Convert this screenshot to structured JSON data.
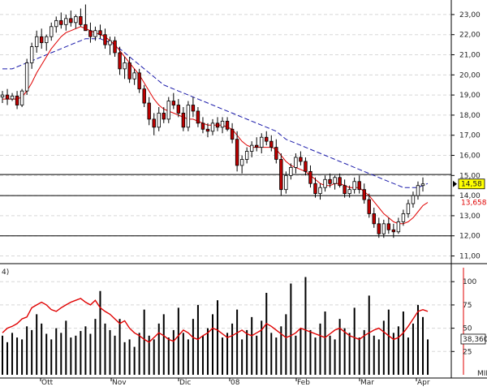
{
  "chart_data": [
    {
      "type": "candlestick",
      "title": "",
      "x_labels": [
        "Ott",
        "Nov",
        "Dic",
        "08",
        "Feb",
        "Mar",
        "Apr"
      ],
      "y_ticks": [
        "23,00",
        "22,00",
        "21,00",
        "20,00",
        "19,00",
        "18,00",
        "17,00",
        "16,00",
        "15,00",
        "14,00",
        "13,00",
        "12,00",
        "11,00"
      ],
      "ylim": [
        10.9,
        23.4
      ],
      "last_price_label": "14,58",
      "ma_label": "13,658",
      "horizontal_lines": [
        15.05,
        14.0,
        12.0
      ],
      "colors": {
        "up": "#ffffff",
        "down": "#c00000",
        "wick": "#000000",
        "ma_fast": "#e00000",
        "ma_slow": "#1a1aaa",
        "last_price_bg": "#ffff00"
      },
      "series_candles": [
        {
          "o": 18.9,
          "h": 19.2,
          "l": 18.6,
          "c": 19.0
        },
        {
          "o": 19.0,
          "h": 19.3,
          "l": 18.5,
          "c": 18.8
        },
        {
          "o": 18.8,
          "h": 19.1,
          "l": 18.7,
          "c": 18.95
        },
        {
          "o": 18.95,
          "h": 19.2,
          "l": 18.3,
          "c": 18.5
        },
        {
          "o": 18.5,
          "h": 19.3,
          "l": 18.4,
          "c": 19.2
        },
        {
          "o": 19.2,
          "h": 20.8,
          "l": 19.0,
          "c": 20.6
        },
        {
          "o": 20.6,
          "h": 21.6,
          "l": 20.3,
          "c": 21.4
        },
        {
          "o": 21.4,
          "h": 22.2,
          "l": 21.1,
          "c": 21.9
        },
        {
          "o": 21.9,
          "h": 22.3,
          "l": 21.3,
          "c": 21.6
        },
        {
          "o": 21.6,
          "h": 22.0,
          "l": 21.2,
          "c": 21.9
        },
        {
          "o": 21.9,
          "h": 22.6,
          "l": 21.7,
          "c": 22.4
        },
        {
          "o": 22.4,
          "h": 22.9,
          "l": 22.1,
          "c": 22.7
        },
        {
          "o": 22.7,
          "h": 23.1,
          "l": 22.3,
          "c": 22.5
        },
        {
          "o": 22.5,
          "h": 23.0,
          "l": 22.2,
          "c": 22.8
        },
        {
          "o": 22.8,
          "h": 23.2,
          "l": 22.4,
          "c": 22.6
        },
        {
          "o": 22.6,
          "h": 23.0,
          "l": 22.3,
          "c": 22.9
        },
        {
          "o": 22.9,
          "h": 23.3,
          "l": 22.4,
          "c": 22.5
        },
        {
          "o": 22.5,
          "h": 23.5,
          "l": 22.2,
          "c": 22.2
        },
        {
          "o": 22.2,
          "h": 22.6,
          "l": 21.6,
          "c": 21.9
        },
        {
          "o": 21.9,
          "h": 22.4,
          "l": 21.7,
          "c": 22.2
        },
        {
          "o": 22.2,
          "h": 22.5,
          "l": 21.8,
          "c": 22.0
        },
        {
          "o": 22.0,
          "h": 22.3,
          "l": 21.3,
          "c": 21.5
        },
        {
          "o": 21.5,
          "h": 21.9,
          "l": 21.0,
          "c": 21.7
        },
        {
          "o": 21.7,
          "h": 21.9,
          "l": 20.9,
          "c": 21.1
        },
        {
          "o": 21.1,
          "h": 21.4,
          "l": 20.0,
          "c": 20.3
        },
        {
          "o": 20.3,
          "h": 20.9,
          "l": 19.8,
          "c": 20.6
        },
        {
          "o": 20.6,
          "h": 20.9,
          "l": 19.6,
          "c": 19.8
        },
        {
          "o": 19.8,
          "h": 20.3,
          "l": 19.5,
          "c": 20.1
        },
        {
          "o": 20.1,
          "h": 20.3,
          "l": 19.1,
          "c": 19.3
        },
        {
          "o": 19.3,
          "h": 19.5,
          "l": 18.4,
          "c": 18.6
        },
        {
          "o": 18.6,
          "h": 18.9,
          "l": 17.5,
          "c": 17.8
        },
        {
          "o": 17.8,
          "h": 18.1,
          "l": 17.0,
          "c": 17.4
        },
        {
          "o": 17.4,
          "h": 18.4,
          "l": 17.2,
          "c": 18.1
        },
        {
          "o": 18.1,
          "h": 18.4,
          "l": 17.6,
          "c": 17.8
        },
        {
          "o": 17.8,
          "h": 18.9,
          "l": 17.6,
          "c": 18.7
        },
        {
          "o": 18.7,
          "h": 19.1,
          "l": 18.3,
          "c": 18.5
        },
        {
          "o": 18.5,
          "h": 18.8,
          "l": 17.9,
          "c": 18.1
        },
        {
          "o": 18.1,
          "h": 18.4,
          "l": 17.2,
          "c": 17.4
        },
        {
          "o": 17.4,
          "h": 18.7,
          "l": 17.2,
          "c": 18.5
        },
        {
          "o": 18.5,
          "h": 18.9,
          "l": 17.9,
          "c": 18.2
        },
        {
          "o": 18.2,
          "h": 18.4,
          "l": 17.4,
          "c": 17.6
        },
        {
          "o": 17.6,
          "h": 17.9,
          "l": 17.1,
          "c": 17.3
        },
        {
          "o": 17.3,
          "h": 17.6,
          "l": 16.9,
          "c": 17.2
        },
        {
          "o": 17.2,
          "h": 17.8,
          "l": 17.0,
          "c": 17.6
        },
        {
          "o": 17.6,
          "h": 17.9,
          "l": 17.2,
          "c": 17.4
        },
        {
          "o": 17.4,
          "h": 17.9,
          "l": 17.1,
          "c": 17.7
        },
        {
          "o": 17.7,
          "h": 17.9,
          "l": 17.2,
          "c": 17.3
        },
        {
          "o": 17.3,
          "h": 17.6,
          "l": 16.6,
          "c": 16.8
        },
        {
          "o": 16.8,
          "h": 17.2,
          "l": 15.2,
          "c": 15.5
        },
        {
          "o": 15.5,
          "h": 16.0,
          "l": 15.1,
          "c": 15.8
        },
        {
          "o": 15.8,
          "h": 16.4,
          "l": 15.6,
          "c": 16.2
        },
        {
          "o": 16.2,
          "h": 16.7,
          "l": 15.9,
          "c": 16.5
        },
        {
          "o": 16.5,
          "h": 16.9,
          "l": 16.2,
          "c": 16.4
        },
        {
          "o": 16.4,
          "h": 17.1,
          "l": 16.1,
          "c": 16.9
        },
        {
          "o": 16.9,
          "h": 17.2,
          "l": 16.5,
          "c": 16.7
        },
        {
          "o": 16.7,
          "h": 17.0,
          "l": 16.2,
          "c": 16.4
        },
        {
          "o": 16.4,
          "h": 16.8,
          "l": 15.6,
          "c": 15.8
        },
        {
          "o": 15.8,
          "h": 16.1,
          "l": 14.0,
          "c": 14.3
        },
        {
          "o": 14.3,
          "h": 15.2,
          "l": 14.1,
          "c": 15.0
        },
        {
          "o": 15.0,
          "h": 15.6,
          "l": 14.8,
          "c": 15.4
        },
        {
          "o": 15.4,
          "h": 16.1,
          "l": 15.1,
          "c": 15.9
        },
        {
          "o": 15.9,
          "h": 16.2,
          "l": 15.5,
          "c": 15.7
        },
        {
          "o": 15.7,
          "h": 15.9,
          "l": 15.0,
          "c": 15.2
        },
        {
          "o": 15.2,
          "h": 15.5,
          "l": 14.4,
          "c": 14.6
        },
        {
          "o": 14.6,
          "h": 14.9,
          "l": 13.9,
          "c": 14.1
        },
        {
          "o": 14.1,
          "h": 14.6,
          "l": 13.8,
          "c": 14.4
        },
        {
          "o": 14.4,
          "h": 15.0,
          "l": 14.2,
          "c": 14.8
        },
        {
          "o": 14.8,
          "h": 15.1,
          "l": 14.4,
          "c": 14.6
        },
        {
          "o": 14.6,
          "h": 15.0,
          "l": 14.3,
          "c": 14.9
        },
        {
          "o": 14.9,
          "h": 15.1,
          "l": 14.4,
          "c": 14.5
        },
        {
          "o": 14.5,
          "h": 14.8,
          "l": 13.9,
          "c": 14.1
        },
        {
          "o": 14.1,
          "h": 14.5,
          "l": 13.9,
          "c": 14.3
        },
        {
          "o": 14.3,
          "h": 14.9,
          "l": 14.1,
          "c": 14.7
        },
        {
          "o": 14.7,
          "h": 15.0,
          "l": 14.1,
          "c": 14.3
        },
        {
          "o": 14.3,
          "h": 14.6,
          "l": 13.6,
          "c": 13.8
        },
        {
          "o": 13.8,
          "h": 14.1,
          "l": 12.9,
          "c": 13.1
        },
        {
          "o": 13.1,
          "h": 13.4,
          "l": 12.4,
          "c": 12.6
        },
        {
          "o": 12.6,
          "h": 12.9,
          "l": 11.9,
          "c": 12.1
        },
        {
          "o": 12.1,
          "h": 12.8,
          "l": 11.9,
          "c": 12.6
        },
        {
          "o": 12.6,
          "h": 12.9,
          "l": 12.1,
          "c": 12.3
        },
        {
          "o": 12.3,
          "h": 12.6,
          "l": 11.9,
          "c": 12.2
        },
        {
          "o": 12.2,
          "h": 12.9,
          "l": 12.1,
          "c": 12.7
        },
        {
          "o": 12.7,
          "h": 13.3,
          "l": 12.5,
          "c": 13.1
        },
        {
          "o": 13.1,
          "h": 13.8,
          "l": 12.9,
          "c": 13.6
        },
        {
          "o": 13.6,
          "h": 14.2,
          "l": 13.4,
          "c": 14.0
        },
        {
          "o": 14.0,
          "h": 14.7,
          "l": 13.8,
          "c": 14.5
        },
        {
          "o": 14.5,
          "h": 14.9,
          "l": 14.2,
          "c": 14.58
        }
      ],
      "series_ma_fast": [
        18.8,
        18.8,
        18.8,
        18.8,
        18.9,
        19.2,
        19.6,
        20.1,
        20.5,
        20.9,
        21.3,
        21.6,
        21.9,
        22.1,
        22.2,
        22.3,
        22.4,
        22.3,
        22.2,
        22.1,
        22.0,
        21.9,
        21.7,
        21.5,
        21.2,
        20.9,
        20.6,
        20.3,
        20.0,
        19.6,
        19.2,
        18.8,
        18.5,
        18.3,
        18.2,
        18.1,
        18.0,
        17.9,
        17.8,
        17.8,
        17.7,
        17.6,
        17.5,
        17.5,
        17.5,
        17.5,
        17.4,
        17.3,
        17.0,
        16.7,
        16.5,
        16.4,
        16.4,
        16.4,
        16.4,
        16.4,
        16.3,
        16.0,
        15.7,
        15.5,
        15.4,
        15.3,
        15.2,
        15.0,
        14.8,
        14.6,
        14.5,
        14.5,
        14.6,
        14.6,
        14.5,
        14.4,
        14.4,
        14.4,
        14.2,
        14.0,
        13.7,
        13.4,
        13.1,
        12.9,
        12.7,
        12.6,
        12.6,
        12.7,
        12.9,
        13.2,
        13.5,
        13.658
      ],
      "series_ma_slow": [
        20.3,
        20.3,
        20.3,
        20.4,
        20.5,
        20.6,
        20.7,
        20.8,
        20.9,
        21.0,
        21.1,
        21.2,
        21.3,
        21.4,
        21.5,
        21.6,
        21.7,
        21.8,
        21.8,
        21.8,
        21.8,
        21.7,
        21.6,
        21.5,
        21.3,
        21.1,
        20.9,
        20.7,
        20.5,
        20.3,
        20.1,
        19.9,
        19.7,
        19.5,
        19.4,
        19.3,
        19.2,
        19.1,
        19.0,
        18.9,
        18.8,
        18.7,
        18.6,
        18.5,
        18.4,
        18.3,
        18.2,
        18.1,
        18.0,
        17.9,
        17.8,
        17.7,
        17.6,
        17.5,
        17.4,
        17.3,
        17.2,
        17.0,
        16.8,
        16.7,
        16.6,
        16.5,
        16.4,
        16.3,
        16.2,
        16.1,
        16.0,
        15.9,
        15.8,
        15.7,
        15.6,
        15.5,
        15.4,
        15.3,
        15.2,
        15.1,
        15.0,
        14.9,
        14.8,
        14.7,
        14.6,
        14.5,
        14.4,
        14.4,
        14.4,
        14.4,
        14.5,
        14.6
      ]
    },
    {
      "type": "bar_line",
      "title": "",
      "indicator_label": "4)",
      "y_ticks": [
        "100",
        "75",
        "50",
        "25"
      ],
      "ylim": [
        0,
        115
      ],
      "last_value_label": "38,360",
      "x_labels": [
        "Ott",
        "Nov",
        "Dic",
        "08",
        "Feb",
        "Mar",
        "Apr"
      ],
      "corner_label": "MIL",
      "colors": {
        "bars": "#000000",
        "line": "#e00000"
      },
      "series_bars": [
        42,
        35,
        45,
        40,
        38,
        52,
        48,
        65,
        55,
        44,
        38,
        50,
        45,
        58,
        40,
        42,
        47,
        52,
        44,
        60,
        90,
        55,
        48,
        42,
        60,
        35,
        38,
        30,
        45,
        70,
        42,
        38,
        55,
        65,
        40,
        48,
        72,
        45,
        38,
        60,
        75,
        42,
        50,
        65,
        80,
        40,
        45,
        55,
        70,
        38,
        48,
        62,
        42,
        58,
        88,
        45,
        40,
        52,
        65,
        98,
        42,
        50,
        105,
        48,
        40,
        55,
        68,
        42,
        38,
        60,
        50,
        45,
        72,
        40,
        48,
        85,
        42,
        38,
        58,
        70,
        45,
        52,
        68,
        40,
        55,
        75,
        62,
        38
      ],
      "series_line": [
        45,
        50,
        52,
        55,
        60,
        62,
        72,
        75,
        78,
        75,
        70,
        68,
        72,
        75,
        78,
        80,
        82,
        78,
        75,
        80,
        72,
        68,
        65,
        60,
        55,
        58,
        50,
        45,
        42,
        38,
        35,
        40,
        45,
        42,
        38,
        36,
        42,
        48,
        45,
        40,
        38,
        42,
        45,
        50,
        48,
        44,
        40,
        42,
        45,
        48,
        44,
        42,
        45,
        48,
        55,
        52,
        48,
        44,
        40,
        42,
        45,
        50,
        48,
        46,
        44,
        42,
        40,
        44,
        48,
        50,
        46,
        42,
        40,
        38,
        42,
        45,
        48,
        50,
        46,
        42,
        38,
        40,
        45,
        52,
        60,
        68,
        70,
        68
      ]
    }
  ]
}
